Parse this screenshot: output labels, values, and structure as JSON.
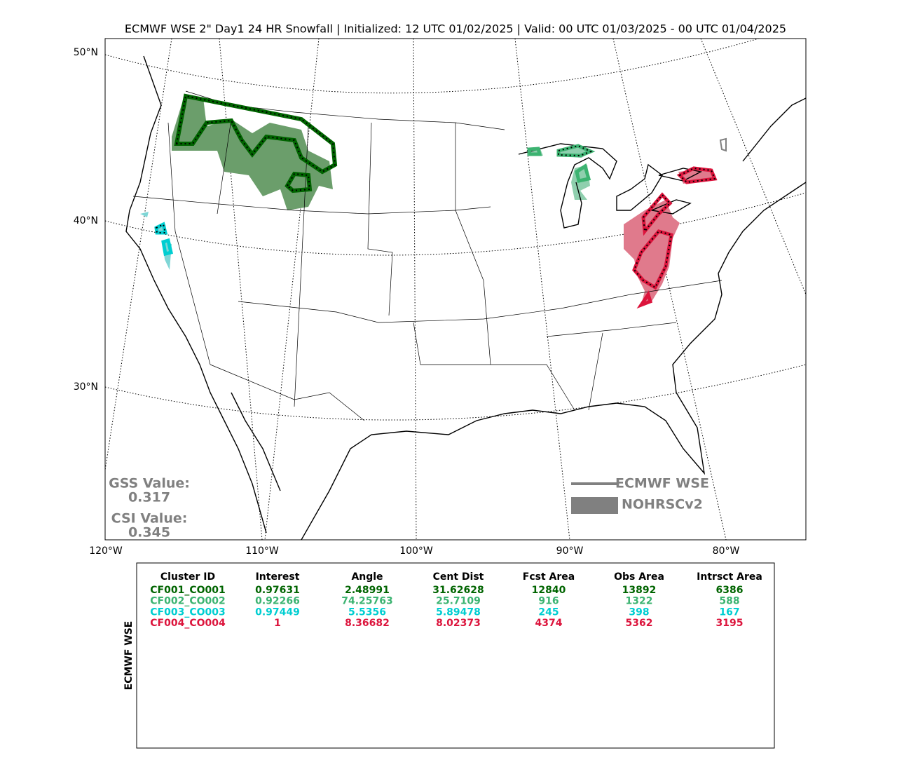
{
  "title": "ECMWF WSE 2\" Day1 24 HR Snowfall | Initialized: 12 UTC 01/02/2025 | Valid: 00 UTC 01/03/2025 - 00 UTC 01/04/2025",
  "map": {
    "lat_labels": [
      "50°N",
      "40°N",
      "30°N"
    ],
    "lon_labels": [
      "120°W",
      "110°W",
      "100°W",
      "90°W",
      "80°W"
    ]
  },
  "scores": [
    {
      "label": "GSS Value:",
      "value": 0.317
    },
    {
      "label": "CSI Value:",
      "value": 0.345
    }
  ],
  "legend": [
    {
      "label": "ECMWF WSE",
      "color": "#808080"
    },
    {
      "label": "NOHRSCv2",
      "color": "#808080"
    }
  ],
  "table": {
    "side_label": "ECMWF WSE",
    "columns": [
      "Cluster ID",
      "Interest",
      "Angle",
      "Cent Dist",
      "Fcst Area",
      "Obs Area",
      "Intrsct Area"
    ],
    "rows": [
      {
        "color": "#006400",
        "cells": [
          "CF001_CO001",
          0.97631,
          2.48991,
          31.62628,
          12840,
          13892,
          6386
        ]
      },
      {
        "color": "#3cb371",
        "cells": [
          "CF002_CO002",
          0.92266,
          74.25763,
          25.7109,
          916,
          1322,
          588
        ]
      },
      {
        "color": "#00ced1",
        "cells": [
          "CF003_CO003",
          0.97449,
          5.5356,
          5.89478,
          245,
          398,
          167
        ]
      },
      {
        "color": "#dc143c",
        "cells": [
          "CF004_CO004",
          1,
          8.36682,
          8.02373,
          4374,
          5362,
          3195
        ]
      }
    ]
  }
}
